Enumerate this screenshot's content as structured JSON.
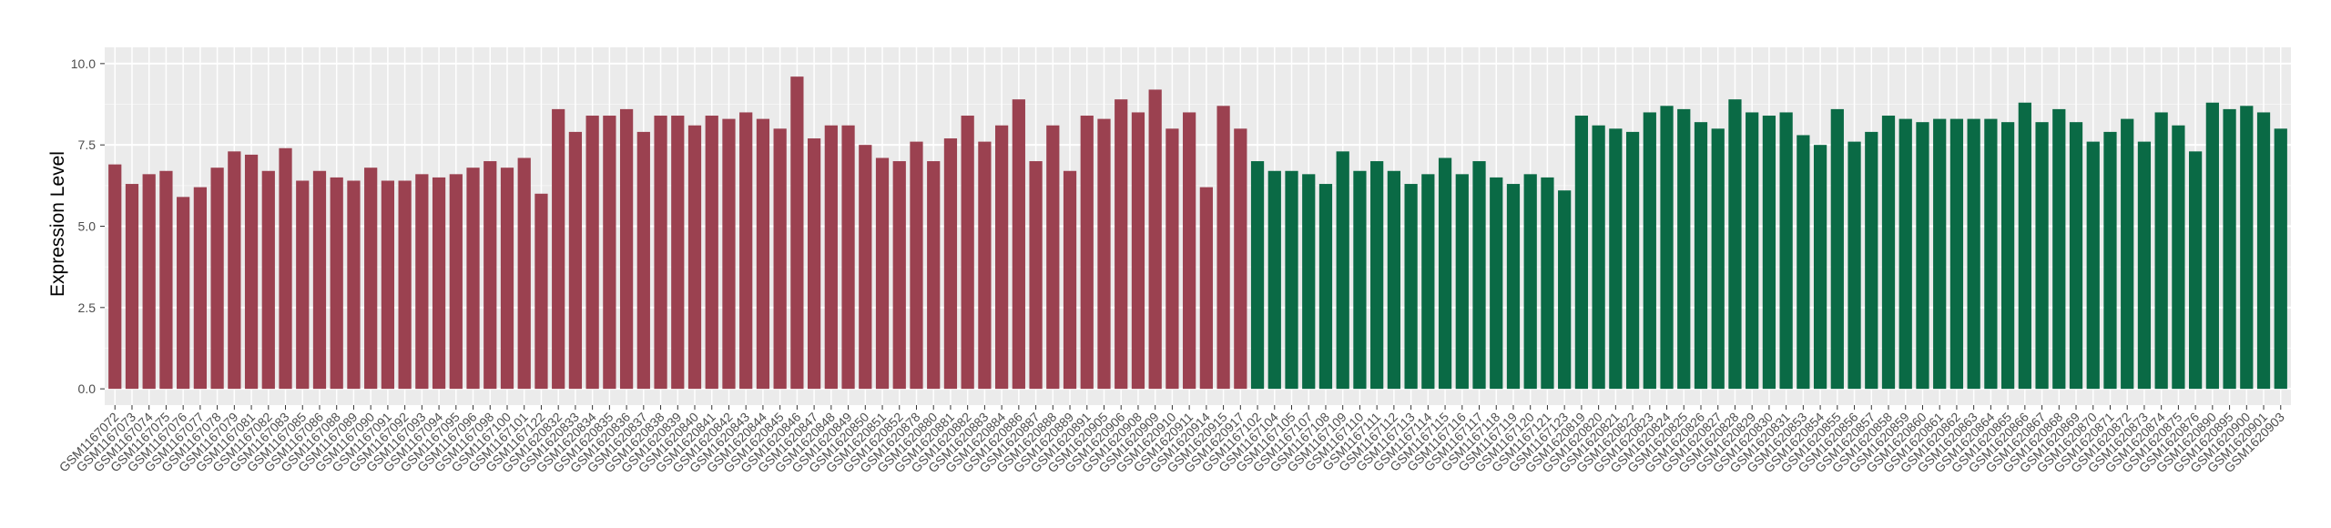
{
  "chart_data": {
    "type": "bar",
    "y_label": "Expression Level",
    "ylim": [
      -0.5,
      10.5
    ],
    "yticks": [
      {
        "value": 0,
        "label": "0.0"
      },
      2.5,
      {
        "value": 5,
        "label": "5.0"
      },
      7.5,
      {
        "value": 10,
        "label": "10.0"
      }
    ],
    "grid": true,
    "series": [
      {
        "color": "#9b4150",
        "categories": [
          "GSM1167072",
          "GSM1167073",
          "GSM1167074",
          "GSM1167075",
          "GSM1167076",
          "GSM1167077",
          "GSM1167078",
          "GSM1167079",
          "GSM1167081",
          "GSM1167082",
          "GSM1167083",
          "GSM1167085",
          "GSM1167086",
          "GSM1167088",
          "GSM1167089",
          "GSM1167090",
          "GSM1167091",
          "GSM1167092",
          "GSM1167093",
          "GSM1167094",
          "GSM1167095",
          "GSM1167096",
          "GSM1167098",
          "GSM1167100",
          "GSM1167101",
          "GSM1167122",
          "GSM1620832",
          "GSM1620833",
          "GSM1620834",
          "GSM1620835",
          "GSM1620836",
          "GSM1620837",
          "GSM1620838",
          "GSM1620839",
          "GSM1620840",
          "GSM1620841",
          "GSM1620842",
          "GSM1620843",
          "GSM1620844",
          "GSM1620845",
          "GSM1620846",
          "GSM1620847",
          "GSM1620848",
          "GSM1620849",
          "GSM1620850",
          "GSM1620851",
          "GSM1620852",
          "GSM1620878",
          "GSM1620880",
          "GSM1620881",
          "GSM1620882",
          "GSM1620883",
          "GSM1620884",
          "GSM1620886",
          "GSM1620887",
          "GSM1620888",
          "GSM1620889",
          "GSM1620891",
          "GSM1620905",
          "GSM1620906",
          "GSM1620908",
          "GSM1620909",
          "GSM1620910",
          "GSM1620911",
          "GSM1620914",
          "GSM1620915",
          "GSM1620917"
        ],
        "values": [
          6.9,
          6.3,
          6.6,
          6.7,
          5.9,
          6.2,
          6.8,
          7.3,
          7.2,
          6.7,
          7.4,
          6.4,
          6.7,
          6.5,
          6.4,
          6.8,
          6.4,
          6.4,
          6.6,
          6.5,
          6.6,
          6.8,
          7.0,
          6.8,
          7.1,
          6.0,
          8.6,
          7.9,
          8.4,
          8.4,
          8.6,
          7.9,
          8.4,
          8.4,
          8.1,
          8.4,
          8.3,
          8.5,
          8.3,
          8.0,
          9.6,
          7.7,
          8.1,
          8.1,
          7.5,
          7.1,
          7.0,
          7.6,
          7.0,
          7.7,
          8.4,
          7.6,
          8.1,
          8.9,
          7.0,
          8.1,
          6.7,
          8.4,
          8.3,
          8.9,
          8.5,
          9.2,
          8.0,
          8.5,
          6.2,
          8.7,
          8.0
        ]
      },
      {
        "color": "#0a6a45",
        "categories": [
          "GSM1167102",
          "GSM1167104",
          "GSM1167105",
          "GSM1167107",
          "GSM1167108",
          "GSM1167109",
          "GSM1167110",
          "GSM1167111",
          "GSM1167112",
          "GSM1167113",
          "GSM1167114",
          "GSM1167115",
          "GSM1167116",
          "GSM1167117",
          "GSM1167118",
          "GSM1167119",
          "GSM1167120",
          "GSM1167121",
          "GSM1167123",
          "GSM1620819",
          "GSM1620820",
          "GSM1620821",
          "GSM1620822",
          "GSM1620823",
          "GSM1620824",
          "GSM1620825",
          "GSM1620826",
          "GSM1620827",
          "GSM1620828",
          "GSM1620829",
          "GSM1620830",
          "GSM1620831",
          "GSM1620853",
          "GSM1620854",
          "GSM1620855",
          "GSM1620856",
          "GSM1620857",
          "GSM1620858",
          "GSM1620859",
          "GSM1620860",
          "GSM1620861",
          "GSM1620862",
          "GSM1620863",
          "GSM1620864",
          "GSM1620865",
          "GSM1620866",
          "GSM1620867",
          "GSM1620868",
          "GSM1620869",
          "GSM1620870",
          "GSM1620871",
          "GSM1620872",
          "GSM1620873",
          "GSM1620874",
          "GSM1620875",
          "GSM1620876",
          "GSM1620890",
          "GSM1620895",
          "GSM1620900",
          "GSM1620901",
          "GSM1620903"
        ],
        "values": [
          7.0,
          6.7,
          6.7,
          6.6,
          6.3,
          7.3,
          6.7,
          7.0,
          6.7,
          6.3,
          6.6,
          7.1,
          6.6,
          7.0,
          6.5,
          6.3,
          6.6,
          6.5,
          6.1,
          8.4,
          8.1,
          8.0,
          7.9,
          8.5,
          8.7,
          8.6,
          8.2,
          8.0,
          8.9,
          8.5,
          8.4,
          8.5,
          7.8,
          7.5,
          8.6,
          7.6,
          7.9,
          8.4,
          8.3,
          8.2,
          8.3,
          8.3,
          8.3,
          8.3,
          8.2,
          8.8,
          8.2,
          8.6,
          8.2,
          7.6,
          7.9,
          8.3,
          7.6,
          8.5,
          8.1,
          7.3,
          8.8,
          8.6,
          8.7,
          8.5,
          8.0
        ]
      }
    ]
  }
}
